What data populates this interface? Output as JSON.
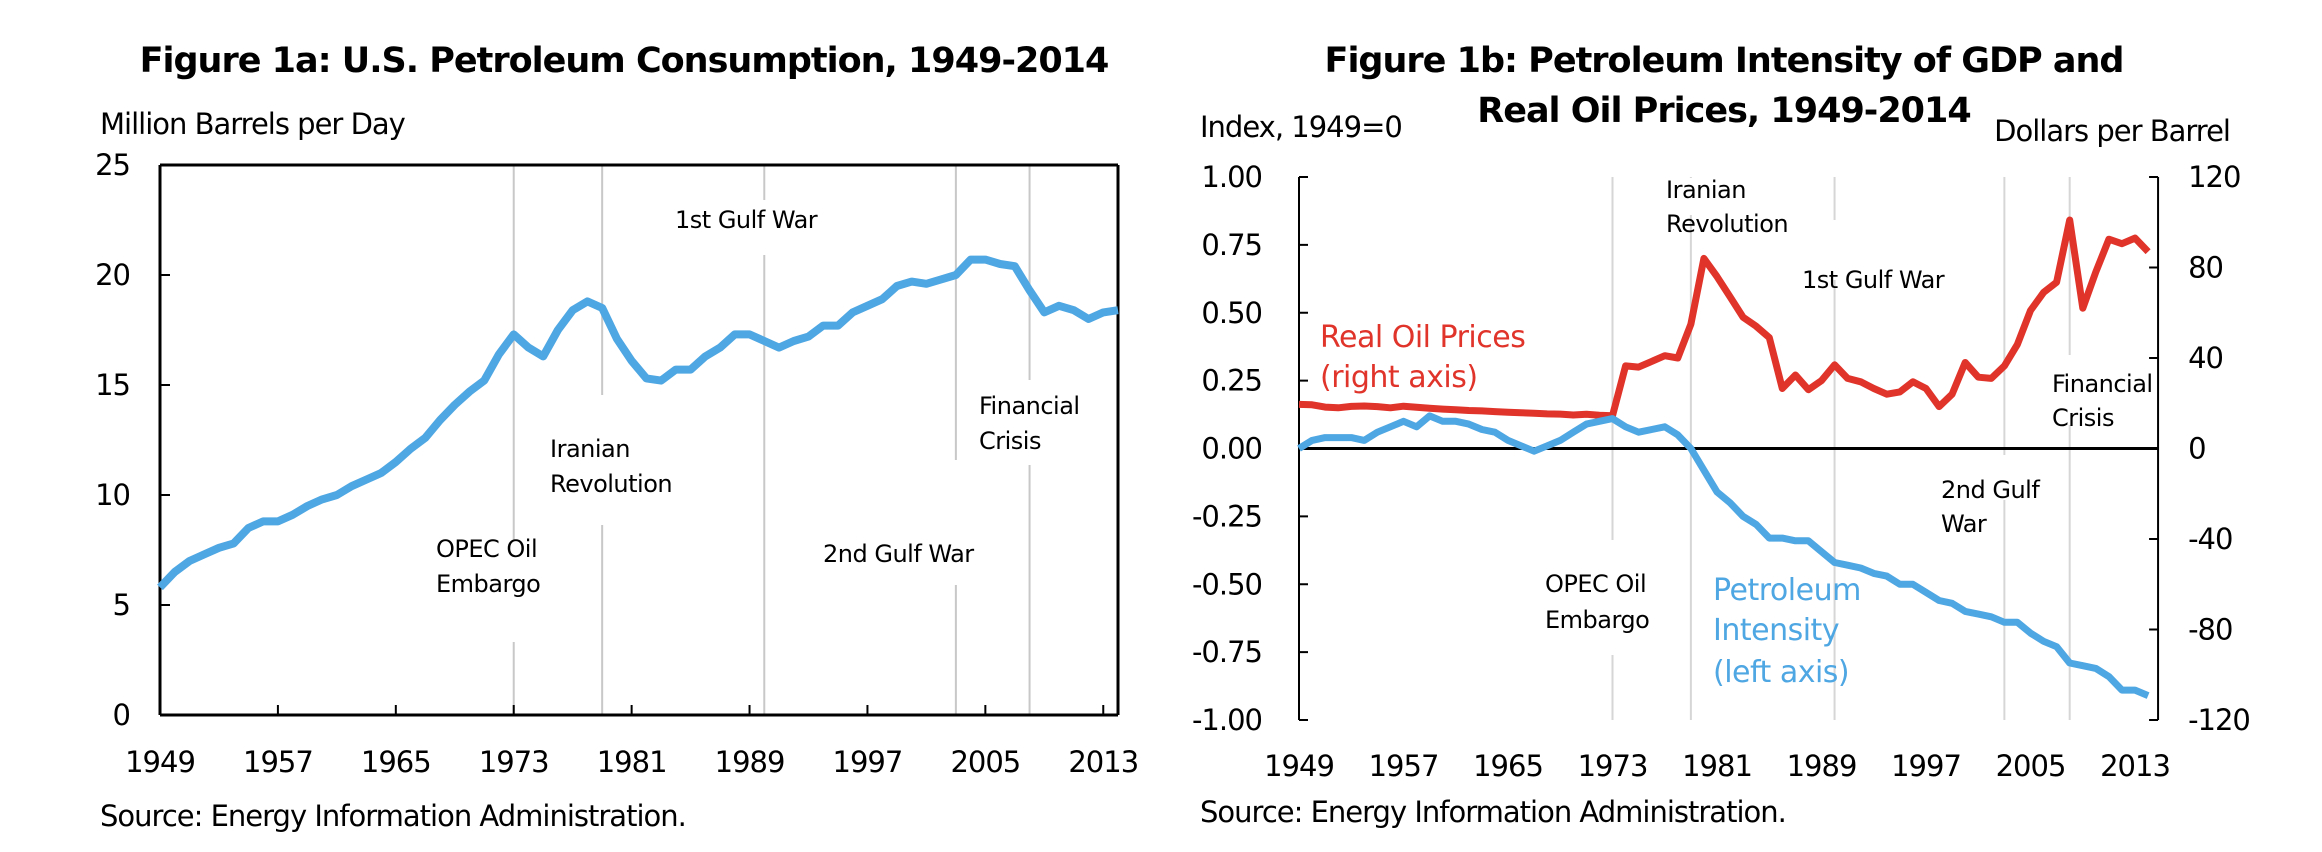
{
  "chart_data": [
    {
      "type": "line",
      "title": "Figure 1a: U.S. Petroleum Consumption, 1949-2014",
      "ylabel": "Million Barrels per Day",
      "xlabel": "",
      "source": "Source: Energy Information Administration.",
      "xlim": [
        1949,
        2014
      ],
      "ylim": [
        0,
        25
      ],
      "yticks": [
        "0",
        "5",
        "10",
        "15",
        "20",
        "25"
      ],
      "ytick_values": [
        0,
        5,
        10,
        15,
        20,
        25
      ],
      "xticks": [
        "1949",
        "1957",
        "1965",
        "1973",
        "1981",
        "1989",
        "1997",
        "2005",
        "2013"
      ],
      "xtick_values": [
        1949,
        1957,
        1965,
        1973,
        1981,
        1989,
        1997,
        2005,
        2013
      ],
      "grid": false,
      "series": [
        {
          "name": "U.S. Petroleum Consumption",
          "color": "#4ea6e2",
          "x": [
            1949,
            1950,
            1951,
            1952,
            1953,
            1954,
            1955,
            1956,
            1957,
            1958,
            1959,
            1960,
            1961,
            1962,
            1963,
            1964,
            1965,
            1966,
            1967,
            1968,
            1969,
            1970,
            1971,
            1972,
            1973,
            1974,
            1975,
            1976,
            1977,
            1978,
            1979,
            1980,
            1981,
            1982,
            1983,
            1984,
            1985,
            1986,
            1987,
            1988,
            1989,
            1990,
            1991,
            1992,
            1993,
            1994,
            1995,
            1996,
            1997,
            1998,
            1999,
            2000,
            2001,
            2002,
            2003,
            2004,
            2005,
            2006,
            2007,
            2008,
            2009,
            2010,
            2011,
            2012,
            2013,
            2014
          ],
          "values": [
            5.8,
            6.5,
            7.0,
            7.3,
            7.6,
            7.8,
            8.5,
            8.8,
            8.8,
            9.1,
            9.5,
            9.8,
            10.0,
            10.4,
            10.7,
            11.0,
            11.5,
            12.1,
            12.6,
            13.4,
            14.1,
            14.7,
            15.2,
            16.4,
            17.3,
            16.7,
            16.3,
            17.5,
            18.4,
            18.8,
            18.5,
            17.1,
            16.1,
            15.3,
            15.2,
            15.7,
            15.7,
            16.3,
            16.7,
            17.3,
            17.3,
            17.0,
            16.7,
            17.0,
            17.2,
            17.7,
            17.7,
            18.3,
            18.6,
            18.9,
            19.5,
            19.7,
            19.6,
            19.8,
            20.0,
            20.7,
            20.7,
            20.5,
            20.4,
            19.3,
            18.3,
            18.6,
            18.4,
            18.0,
            18.3,
            18.4
          ]
        }
      ],
      "events": [
        {
          "year": 1973,
          "label": [
            "OPEC Oil",
            "Embargo"
          ]
        },
        {
          "year": 1979,
          "label": [
            "Iranian",
            "Revolution"
          ]
        },
        {
          "year": 1990,
          "label": [
            "1st Gulf War"
          ]
        },
        {
          "year": 2003,
          "label": [
            "2nd Gulf War"
          ]
        },
        {
          "year": 2008,
          "label": [
            "Financial",
            "Crisis"
          ]
        }
      ]
    },
    {
      "type": "line",
      "title": "Figure 1b: Petroleum Intensity of GDP and",
      "title_line2": "Real Oil Prices, 1949-2014",
      "ylabel": "Index, 1949=0",
      "ylabel_right": "Dollars per Barrel",
      "xlabel": "",
      "source": "Source: Energy Information Administration.",
      "xlim": [
        1949,
        2014
      ],
      "ylim": [
        -1.0,
        1.0
      ],
      "ylim_right": [
        -120,
        120
      ],
      "yticks": [
        "1.00",
        "0.75",
        "0.50",
        "0.25",
        "0.00",
        "-0.25",
        "-0.50",
        "-0.75",
        "-1.00"
      ],
      "ytick_values": [
        1.0,
        0.75,
        0.5,
        0.25,
        0.0,
        -0.25,
        -0.5,
        -0.75,
        -1.0
      ],
      "yticks_right": [
        "120",
        "80",
        "40",
        "0",
        "-40",
        "-80",
        "-120"
      ],
      "ytick_values_right": [
        120,
        80,
        40,
        0,
        -40,
        -80,
        -120
      ],
      "xticks": [
        "1949",
        "1957",
        "1965",
        "1973",
        "1981",
        "1989",
        "1997",
        "2005",
        "2013"
      ],
      "xtick_values": [
        1949,
        1957,
        1965,
        1973,
        1981,
        1989,
        1997,
        2005,
        2013
      ],
      "grid": false,
      "series": [
        {
          "name": "Real Oil Prices",
          "legend": [
            "Real Oil Prices",
            "(right axis)"
          ],
          "axis": "right",
          "color": "#e0332a",
          "x": [
            1949,
            1950,
            1951,
            1952,
            1953,
            1954,
            1955,
            1956,
            1957,
            1958,
            1959,
            1960,
            1961,
            1962,
            1963,
            1964,
            1965,
            1966,
            1967,
            1968,
            1969,
            1970,
            1971,
            1972,
            1973,
            1974,
            1975,
            1976,
            1977,
            1978,
            1979,
            1980,
            1981,
            1982,
            1983,
            1984,
            1985,
            1986,
            1987,
            1988,
            1989,
            1990,
            1991,
            1992,
            1993,
            1994,
            1995,
            1996,
            1997,
            1998,
            1999,
            2000,
            2001,
            2002,
            2003,
            2004,
            2005,
            2006,
            2007,
            2008,
            2009,
            2010,
            2011,
            2012,
            2013,
            2014
          ],
          "values": [
            19.5,
            19.3,
            18.3,
            18.0,
            18.6,
            18.8,
            18.5,
            18.0,
            18.7,
            18.2,
            17.8,
            17.4,
            17.1,
            16.8,
            16.6,
            16.3,
            16.0,
            15.8,
            15.6,
            15.3,
            15.2,
            14.8,
            15.1,
            14.7,
            14.5,
            36.5,
            36.0,
            38.5,
            41.0,
            40.0,
            55.0,
            84.0,
            76.0,
            67.0,
            58.0,
            54.0,
            49.0,
            26.5,
            32.5,
            26.0,
            30.0,
            37.0,
            31.0,
            29.5,
            26.5,
            24.0,
            25.0,
            29.5,
            26.5,
            18.5,
            24.0,
            38.0,
            31.5,
            31.0,
            36.5,
            46.0,
            61.0,
            69.0,
            73.5,
            101.0,
            62.0,
            78.0,
            92.5,
            90.5,
            93.0,
            87.0
          ]
        },
        {
          "name": "Petroleum Intensity",
          "legend": [
            "Petroleum",
            "Intensity",
            "(left axis)"
          ],
          "axis": "left",
          "color": "#4ea6e2",
          "x": [
            1949,
            1950,
            1951,
            1952,
            1953,
            1954,
            1955,
            1956,
            1957,
            1958,
            1959,
            1960,
            1961,
            1962,
            1963,
            1964,
            1965,
            1966,
            1967,
            1968,
            1969,
            1970,
            1971,
            1972,
            1973,
            1974,
            1975,
            1976,
            1977,
            1978,
            1979,
            1980,
            1981,
            1982,
            1983,
            1984,
            1985,
            1986,
            1987,
            1988,
            1989,
            1990,
            1991,
            1992,
            1993,
            1994,
            1995,
            1996,
            1997,
            1998,
            1999,
            2000,
            2001,
            2002,
            2003,
            2004,
            2005,
            2006,
            2007,
            2008,
            2009,
            2010,
            2011,
            2012,
            2013,
            2014
          ],
          "values": [
            0.0,
            0.03,
            0.04,
            0.04,
            0.04,
            0.03,
            0.06,
            0.08,
            0.1,
            0.08,
            0.12,
            0.1,
            0.1,
            0.09,
            0.07,
            0.06,
            0.03,
            0.01,
            -0.01,
            0.01,
            0.03,
            0.06,
            0.09,
            0.1,
            0.11,
            0.08,
            0.06,
            0.07,
            0.08,
            0.05,
            0.0,
            -0.08,
            -0.16,
            -0.2,
            -0.25,
            -0.28,
            -0.33,
            -0.33,
            -0.34,
            -0.34,
            -0.38,
            -0.42,
            -0.43,
            -0.44,
            -0.46,
            -0.47,
            -0.5,
            -0.5,
            -0.53,
            -0.56,
            -0.57,
            -0.6,
            -0.61,
            -0.62,
            -0.64,
            -0.64,
            -0.68,
            -0.71,
            -0.73,
            -0.79,
            -0.8,
            -0.81,
            -0.84,
            -0.89,
            -0.89,
            -0.91
          ]
        }
      ],
      "events": [
        {
          "year": 1973,
          "label": [
            "OPEC Oil",
            "Embargo"
          ]
        },
        {
          "year": 1979,
          "label": [
            "Iranian",
            "Revolution"
          ]
        },
        {
          "year": 1990,
          "label": [
            "1st Gulf War"
          ]
        },
        {
          "year": 2003,
          "label": [
            "2nd Gulf",
            "War"
          ]
        },
        {
          "year": 2008,
          "label": [
            "Financial",
            "Crisis"
          ]
        }
      ]
    }
  ]
}
